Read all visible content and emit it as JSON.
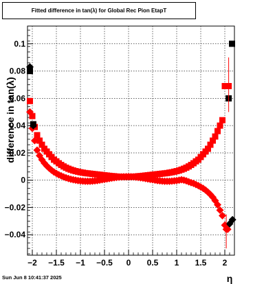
{
  "title": "Fitted difference in tan(λ) for Global Rec Pion EtapT",
  "timestamp": "Sun Jun  8 10:41:37 2025",
  "chart_data": {
    "type": "scatter",
    "xlabel": "η",
    "ylabel": "difference in tan(λ)",
    "xlim": [
      -2.1,
      2.2
    ],
    "ylim": [
      -0.055,
      0.113
    ],
    "grid": true,
    "x_ticks": [
      -2,
      -1.5,
      -1,
      -0.5,
      0,
      0.5,
      1,
      1.5,
      2
    ],
    "x_tick_labels": [
      "−2",
      "−1.5",
      "−1",
      "−0.5",
      "0",
      "0.5",
      "1",
      "1.5",
      "2"
    ],
    "y_ticks": [
      -0.04,
      -0.02,
      0,
      0.02,
      0.04,
      0.06,
      0.08,
      0.1
    ],
    "y_tick_labels": [
      "−0.04",
      "−0.02",
      "0",
      "0.02",
      "0.04",
      "0.06",
      "0.08",
      "0.1"
    ],
    "colors": {
      "markers_red": "#ff0000",
      "markers_black": "#000000",
      "grid": "#000000"
    },
    "series": [
      {
        "marker": "square",
        "color": "#ff0000",
        "x": [
          -2.05,
          -2.0,
          -1.95,
          -1.9,
          -1.85,
          -1.8,
          -1.75,
          -1.7,
          -1.65,
          -1.6,
          -1.55,
          -1.5,
          -1.45,
          -1.4,
          -1.35,
          -1.3,
          -1.25,
          -1.2,
          -1.15,
          -1.1,
          -1.05,
          -1.0,
          -0.95,
          -0.9,
          -0.85,
          -0.8,
          -0.75,
          -0.7,
          -0.65,
          -0.6,
          -0.55,
          -0.5,
          -0.45,
          -0.4,
          -0.35,
          -0.3,
          -0.25,
          -0.2,
          -0.15,
          -0.1,
          -0.05,
          0.0,
          0.05,
          0.1,
          0.15,
          0.2,
          0.25,
          0.3,
          0.35,
          0.4,
          0.45,
          0.5,
          0.55,
          0.6,
          0.65,
          0.7,
          0.75,
          0.8,
          0.85,
          0.9,
          0.95,
          1.0,
          1.05,
          1.1,
          1.15,
          1.2,
          1.25,
          1.3,
          1.35,
          1.4,
          1.45,
          1.5,
          1.55,
          1.6,
          1.65,
          1.7,
          1.75,
          1.8,
          1.85,
          1.9,
          1.95,
          2.0,
          2.05,
          2.08
        ],
        "y": [
          0.058,
          0.047,
          0.039,
          0.033,
          0.029,
          0.026,
          0.023,
          0.021,
          0.019,
          0.017,
          0.015,
          0.0138,
          0.0124,
          0.0112,
          0.0101,
          0.0092,
          0.0084,
          0.0077,
          0.0071,
          0.0066,
          0.0062,
          0.0058,
          0.0055,
          0.0052,
          0.005,
          0.0048,
          0.0046,
          0.0044,
          0.0042,
          0.004,
          0.0038,
          0.0036,
          0.0034,
          0.0032,
          0.003,
          0.0029,
          0.0027,
          0.0026,
          0.0025,
          0.0024,
          0.0024,
          0.0024,
          0.0025,
          0.0026,
          0.0027,
          0.0029,
          0.003,
          0.0032,
          0.0034,
          0.0036,
          0.0038,
          0.004,
          0.0042,
          0.0044,
          0.0046,
          0.0048,
          0.005,
          0.0052,
          0.0055,
          0.0058,
          0.0062,
          0.0066,
          0.0071,
          0.0077,
          0.0084,
          0.0092,
          0.0101,
          0.0112,
          0.0124,
          0.0138,
          0.015,
          0.017,
          0.019,
          0.021,
          0.023,
          0.026,
          0.029,
          0.032,
          0.036,
          0.04,
          0.044,
          0.069,
          0.069,
          0.069
        ]
      },
      {
        "marker": "diamond",
        "color": "#ff0000",
        "x": [
          -2.05,
          -2.0,
          -1.95,
          -1.9,
          -1.85,
          -1.8,
          -1.75,
          -1.7,
          -1.65,
          -1.6,
          -1.55,
          -1.5,
          -1.45,
          -1.4,
          -1.35,
          -1.3,
          -1.25,
          -1.2,
          -1.15,
          -1.1,
          -1.05,
          -1.0,
          -0.95,
          -0.9,
          -0.85,
          -0.8,
          -0.75,
          -0.7,
          -0.65,
          -0.6,
          -0.55,
          -0.5,
          -0.45,
          -0.4,
          -0.35,
          -0.3,
          -0.25,
          -0.2,
          -0.15,
          -0.1,
          -0.05,
          0.0,
          0.05,
          0.1,
          0.15,
          0.2,
          0.25,
          0.3,
          0.35,
          0.4,
          0.45,
          0.5,
          0.55,
          0.6,
          0.65,
          0.7,
          0.75,
          0.8,
          0.85,
          0.9,
          0.95,
          1.0,
          1.05,
          1.1,
          1.15,
          1.2,
          1.25,
          1.3,
          1.35,
          1.4,
          1.45,
          1.5,
          1.55,
          1.6,
          1.65,
          1.7,
          1.75,
          1.8,
          1.85,
          1.9,
          1.95,
          2.0,
          2.03,
          2.06
        ],
        "y": [
          0.05,
          0.038,
          0.029,
          0.022,
          0.018,
          0.015,
          0.0125,
          0.0105,
          0.0088,
          0.0073,
          0.006,
          0.005,
          0.004,
          0.0032,
          0.0024,
          0.0018,
          0.0012,
          0.0007,
          0.0003,
          0.0,
          -0.0003,
          -0.0005,
          -0.0007,
          -0.0008,
          -0.0008,
          -0.0008,
          -0.0007,
          -0.0005,
          -0.0003,
          0.0,
          0.0003,
          0.0006,
          0.0009,
          0.0012,
          0.0015,
          0.0018,
          0.002,
          0.0022,
          0.0024,
          0.0025,
          0.0026,
          0.0026,
          0.0025,
          0.0024,
          0.0022,
          0.002,
          0.0018,
          0.0015,
          0.0012,
          0.0009,
          0.0006,
          0.0003,
          0.0,
          -0.0003,
          -0.0005,
          -0.0007,
          -0.0008,
          -0.0008,
          -0.0008,
          -0.0007,
          -0.0005,
          -0.0003,
          0.0,
          0.0003,
          0.0,
          -0.0005,
          -0.0012,
          -0.0018,
          -0.0024,
          -0.0032,
          -0.004,
          -0.005,
          -0.006,
          -0.0073,
          -0.0088,
          -0.0105,
          -0.0125,
          -0.015,
          -0.018,
          -0.022,
          -0.026,
          -0.033,
          -0.036,
          -0.036
        ]
      },
      {
        "marker": "square",
        "color": "#000000",
        "x": [
          -2.05,
          -1.98,
          2.08,
          2.15
        ],
        "y": [
          0.08,
          0.041,
          0.06,
          0.1
        ]
      },
      {
        "marker": "diamond",
        "color": "#000000",
        "x": [
          -2.05,
          -1.98,
          2.1,
          2.16
        ],
        "y": [
          0.083,
          0.04,
          -0.032,
          -0.029
        ]
      }
    ]
  }
}
